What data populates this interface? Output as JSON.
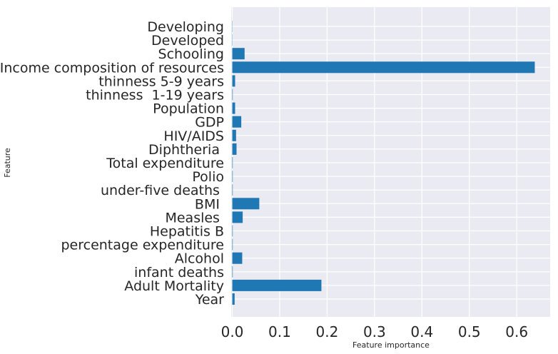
{
  "chart_data": {
    "type": "bar",
    "orientation": "horizontal",
    "xlabel": "Feature importance",
    "ylabel": "Feature",
    "xlim": [
      0,
      0.67
    ],
    "xticks": [
      "0.0",
      "0.1",
      "0.2",
      "0.3",
      "0.4",
      "0.5",
      "0.6"
    ],
    "grid": true,
    "categories": [
      "Year",
      "Adult Mortality",
      "infant deaths",
      "Alcohol",
      "percentage expenditure",
      "Hepatitis B",
      "Measles ",
      "BMI ",
      "under-five deaths ",
      "Polio",
      "Total expenditure",
      "Diphtheria ",
      "HIV/AIDS",
      "GDP",
      "Population",
      "thinness  1-19 years",
      "thinness 5-9 years",
      "Income composition of resources",
      "Schooling",
      "Developed",
      "Developing"
    ],
    "values": [
      0.005,
      0.188,
      0.001,
      0.021,
      0.001,
      0.001,
      0.022,
      0.057,
      0.001,
      0.001,
      0.001,
      0.009,
      0.008,
      0.019,
      0.006,
      0.001,
      0.006,
      0.638,
      0.026,
      0.0005,
      0.0005
    ],
    "colors": {
      "bar": "#1f77b4",
      "background": "#eaeaf2",
      "grid": "#ffffff"
    }
  }
}
